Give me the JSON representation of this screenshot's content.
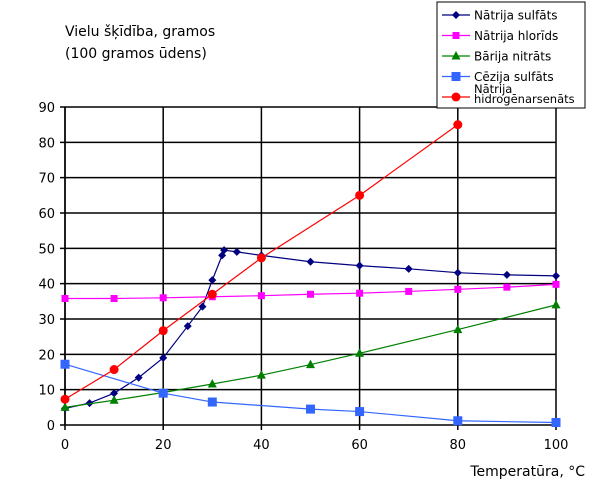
{
  "chart_data": {
    "type": "line",
    "title": [
      "Vielu šķīdība, gramos",
      "(100 gramos ūdens)"
    ],
    "xlabel": "Temperatūra, °C",
    "ylabel": "",
    "xlim": [
      0,
      100
    ],
    "ylim": [
      0,
      90
    ],
    "xticks": [
      "0",
      "20",
      "40",
      "60",
      "80",
      "100"
    ],
    "yticks": [
      "0",
      "10",
      "20",
      "30",
      "40",
      "50",
      "60",
      "70",
      "80",
      "90"
    ],
    "grid": true,
    "legend": "top-right",
    "series": [
      {
        "name": "Nātrija sulfāts",
        "color": "#000080",
        "marker": "diamond",
        "x": [
          0,
          5,
          10,
          15,
          20,
          25,
          28,
          30,
          32,
          32.4,
          35,
          40,
          50,
          60,
          70,
          80,
          90,
          100
        ],
        "y": [
          4.7,
          6.2,
          9,
          13.4,
          19,
          28,
          33.5,
          41,
          48,
          49.5,
          49,
          48,
          46.2,
          45.1,
          44.2,
          43.1,
          42.5,
          42.2
        ]
      },
      {
        "name": "Nātrija hlorīds",
        "color": "#ff00ff",
        "marker": "square",
        "x": [
          0,
          10,
          20,
          30,
          40,
          50,
          60,
          70,
          80,
          90,
          100
        ],
        "y": [
          35.8,
          35.8,
          36,
          36.3,
          36.6,
          37,
          37.3,
          37.8,
          38.4,
          39,
          39.8
        ]
      },
      {
        "name": "Bārija nitrāts",
        "color": "#008000",
        "marker": "triangle",
        "x": [
          0,
          10,
          20,
          30,
          40,
          50,
          60,
          80,
          100
        ],
        "y": [
          5,
          7,
          9.2,
          11.6,
          14.1,
          17.1,
          20.3,
          27,
          34
        ]
      },
      {
        "name": "Cēzija sulfāts",
        "color": "#3366ff",
        "marker": "bigsquare",
        "x": [
          0,
          20,
          30,
          50,
          60,
          80,
          100
        ],
        "y": [
          17.2,
          9,
          6.5,
          4.5,
          3.8,
          1.2,
          0.7
        ]
      },
      {
        "name": "Nātrija hidrogēnarsenāts",
        "color": "#ff0000",
        "marker": "circle",
        "x": [
          0,
          10,
          20,
          30,
          40,
          60,
          80
        ],
        "y": [
          7.3,
          15.7,
          26.7,
          37,
          47.3,
          65,
          85
        ]
      }
    ]
  }
}
